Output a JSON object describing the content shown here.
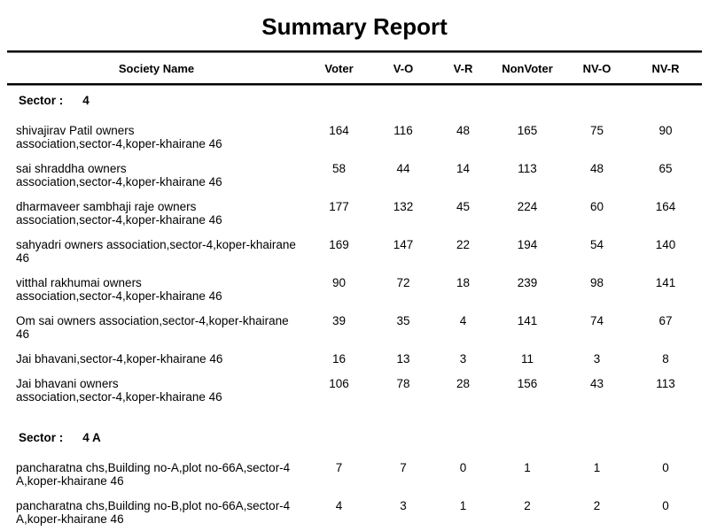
{
  "title": "Summary Report",
  "columns": [
    "Society Name",
    "Voter",
    "V-O",
    "V-R",
    "NonVoter",
    "NV-O",
    "NV-R"
  ],
  "sections": [
    {
      "label": "Sector :",
      "value": "4",
      "rows": [
        {
          "name_lines": [
            "shivajirav Patil owners",
            "association,sector-4,koper-khairane 46"
          ],
          "values": [
            164,
            116,
            48,
            165,
            75,
            90
          ]
        },
        {
          "name_lines": [
            "sai shraddha owners",
            "association,sector-4,koper-khairane 46"
          ],
          "values": [
            58,
            44,
            14,
            113,
            48,
            65
          ]
        },
        {
          "name_lines": [
            "dharmaveer sambhaji raje owners",
            "association,sector-4,koper-khairane 46"
          ],
          "values": [
            177,
            132,
            45,
            224,
            60,
            164
          ]
        },
        {
          "name_lines": [
            "sahyadri owners association,sector-4,koper-khairane",
            "46"
          ],
          "values": [
            169,
            147,
            22,
            194,
            54,
            140
          ]
        },
        {
          "name_lines": [
            "vitthal rakhumai owners",
            "association,sector-4,koper-khairane 46"
          ],
          "values": [
            90,
            72,
            18,
            239,
            98,
            141
          ]
        },
        {
          "name_lines": [
            "Om sai owners association,sector-4,koper-khairane",
            "46"
          ],
          "values": [
            39,
            35,
            4,
            141,
            74,
            67
          ]
        },
        {
          "name_lines": [
            "Jai bhavani,sector-4,koper-khairane 46"
          ],
          "values": [
            16,
            13,
            3,
            11,
            3,
            8
          ]
        },
        {
          "name_lines": [
            "Jai bhavani owners",
            "association,sector-4,koper-khairane 46"
          ],
          "values": [
            106,
            78,
            28,
            156,
            43,
            113
          ]
        }
      ]
    },
    {
      "label": "Sector :",
      "value": "4 A",
      "rows": [
        {
          "name_lines": [
            "pancharatna chs,Building no-A,plot no-66A,sector-4",
            "A,koper-khairane 46"
          ],
          "values": [
            7,
            7,
            0,
            1,
            1,
            0
          ]
        },
        {
          "name_lines": [
            "pancharatna chs,Building no-B,plot no-66A,sector-4",
            "A,koper-khairane 46"
          ],
          "values": [
            4,
            3,
            1,
            2,
            2,
            0
          ]
        }
      ]
    }
  ],
  "colors": {
    "text": "#000000",
    "background": "#ffffff",
    "rule_dark": "#000000",
    "rule_light": "#808080"
  }
}
